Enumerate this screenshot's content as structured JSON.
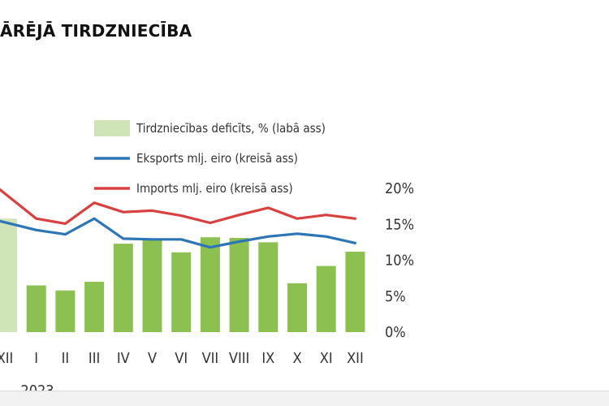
{
  "heading": "ĀRĒJĀ TIRDZNIECĪBA",
  "chart_data": {
    "type": "bar",
    "categories": [
      "XII",
      "I",
      "II",
      "III",
      "IV",
      "V",
      "VI",
      "VII",
      "VIII",
      "IX",
      "X",
      "XI",
      "XII"
    ],
    "year_label": "2023",
    "bar_series": {
      "name": "Tirdzniecības deficīts, % (labā ass)",
      "values": [
        15.8,
        6.5,
        5.8,
        7.0,
        12.3,
        12.9,
        11.1,
        13.2,
        13.1,
        12.5,
        6.8,
        9.2,
        11.2
      ],
      "color": "#8cc152",
      "first_color": "#cfe5b8"
    },
    "line_series": [
      {
        "name": "Eksports mlj. eiro (kreisā ass)",
        "values": [
          15.5,
          14.2,
          13.6,
          15.8,
          13.0,
          12.9,
          12.9,
          11.8,
          12.6,
          13.3,
          13.7,
          13.3,
          12.4
        ],
        "color": "#2e75b6"
      },
      {
        "name": "Imports mlj. eiro (kreisā ass)",
        "values": [
          20.0,
          15.8,
          15.1,
          18.0,
          16.7,
          16.9,
          16.2,
          15.2,
          16.3,
          17.3,
          15.8,
          16.3,
          15.8
        ],
        "color": "#d94040"
      }
    ],
    "right_axis": {
      "ticks": [
        "20%",
        "15%",
        "10%",
        "5%",
        "0%"
      ],
      "ylim": [
        0,
        20
      ]
    },
    "legend_position": "top-center"
  }
}
